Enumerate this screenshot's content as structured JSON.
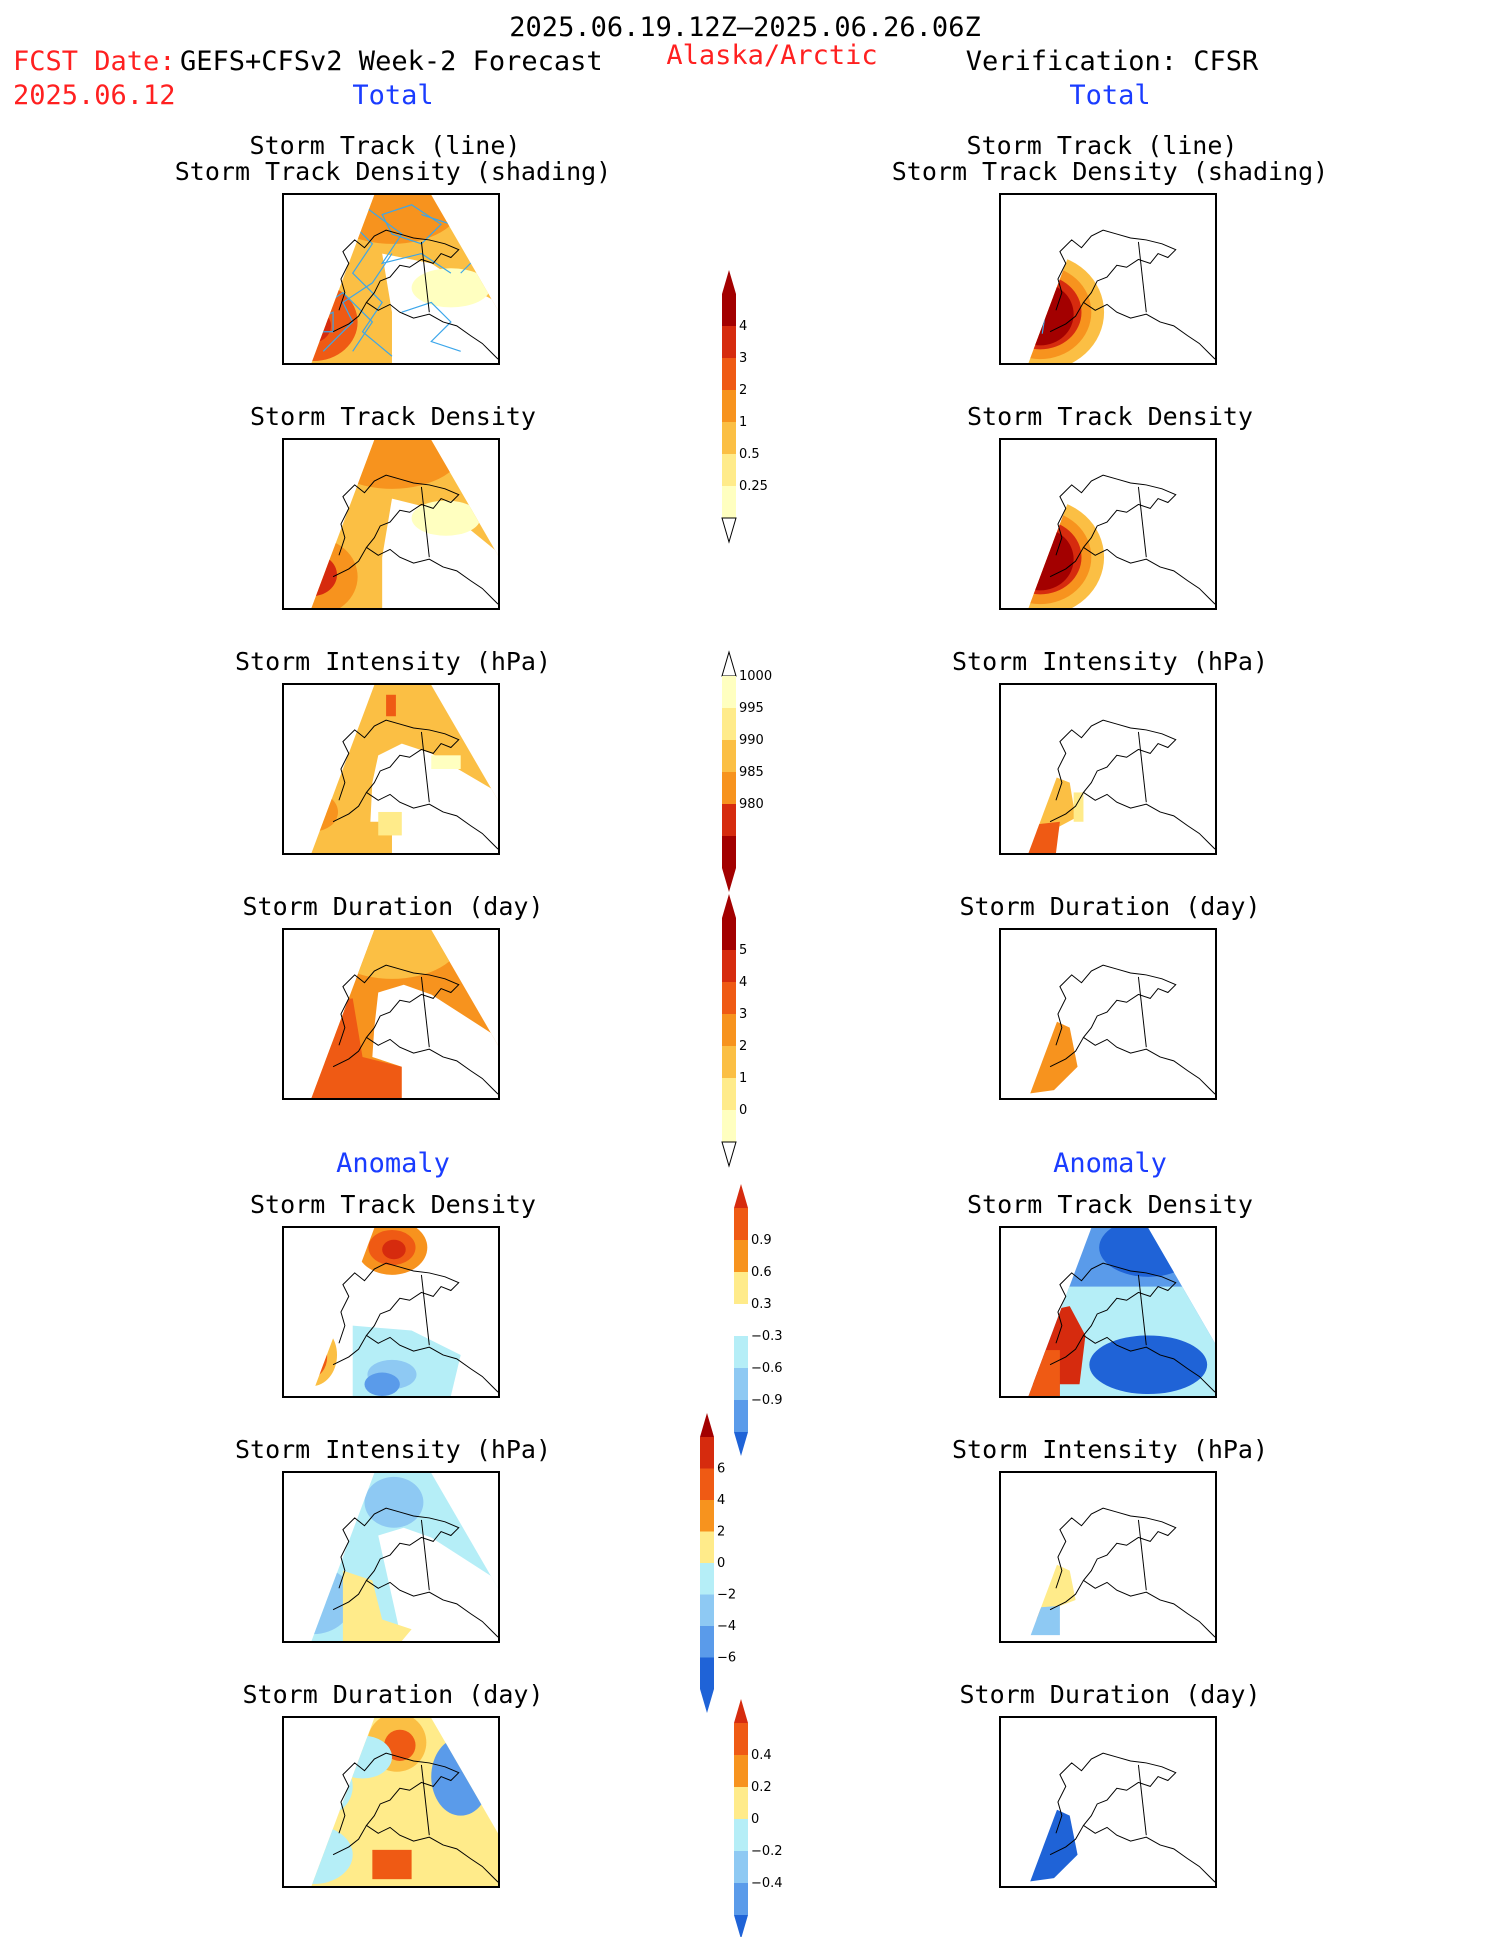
{
  "header": {
    "date_range": "2025.06.19.12Z–2025.06.26.06Z",
    "fcst_label": "FCST Date:",
    "fcst_model": "GEFS+CFSv2 Week-2 Forecast",
    "fcst_date": "2025.06.12",
    "region": "Alaska/Arctic",
    "verification": "Verification: CFSR",
    "total_left": "Total",
    "total_right": "Total",
    "anomaly_left": "Anomaly",
    "anomaly_right": "Anomaly"
  },
  "titles": {
    "track_line": "Storm Track (line)",
    "track_shading": "Storm Track Density (shading)",
    "density": "Storm Track Density",
    "intensity": "Storm Intensity (hPa)",
    "duration": "Storm Duration (day)"
  },
  "colorbars": {
    "density": [
      "4",
      "3",
      "2",
      "1",
      "0.5",
      "0.25"
    ],
    "intensity": [
      "1000",
      "995",
      "990",
      "985",
      "980"
    ],
    "duration": [
      "5",
      "4",
      "3",
      "2",
      "1",
      "0"
    ],
    "density_anom": [
      "0.9",
      "0.6",
      "0.3",
      "−0.3",
      "−0.6",
      "−0.9"
    ],
    "intensity_anom": [
      "6",
      "4",
      "2",
      "0",
      "−2",
      "−4",
      "−6"
    ],
    "duration_anom": [
      "0.4",
      "0.2",
      "0",
      "−0.2",
      "−0.4"
    ]
  },
  "colors": {
    "warm": [
      "#ffffc0",
      "#ffeb8a",
      "#fbbf44",
      "#f7931e",
      "#ef5a14",
      "#d62b0e",
      "#a30000"
    ],
    "cool": [
      "#b5eef7",
      "#8ec9f3",
      "#5a9bea",
      "#1f63d7"
    ],
    "track_line": "#3ba6ea"
  }
}
